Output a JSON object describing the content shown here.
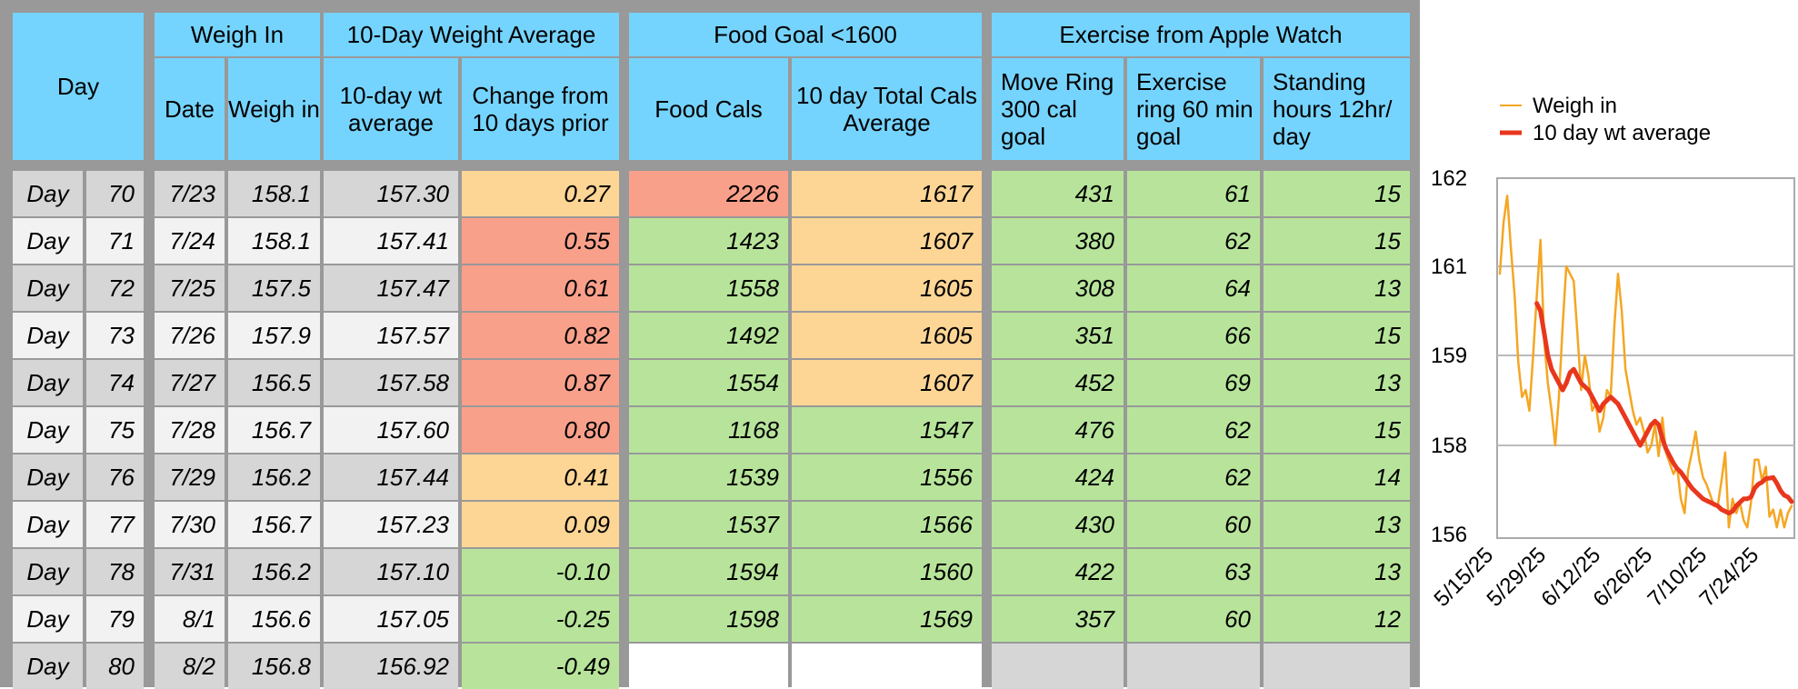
{
  "headers": {
    "day": "Day",
    "weigh_in_group": "Weigh In",
    "avg_group": "10-Day Weight Average",
    "food_group": "Food Goal <1600",
    "exercise_group": "Exercise from Apple Watch",
    "columns": [
      "Date",
      "Weigh in",
      "10-day wt average",
      "Change from 10 days prior",
      "Food Cals",
      "10 day Total Cals Average",
      "Move Ring 300 cal goal",
      "Exercise ring 60 min goal",
      "Standing hours 12hr/ day"
    ]
  },
  "rows": [
    {
      "label": "Day",
      "num": "70",
      "date": "7/23",
      "weigh": "158.1",
      "avg": "157.30",
      "change": "0.27",
      "food": "2226",
      "food_avg": "1617",
      "move": "431",
      "exercise": "61",
      "stand": "15"
    },
    {
      "label": "Day",
      "num": "71",
      "date": "7/24",
      "weigh": "158.1",
      "avg": "157.41",
      "change": "0.55",
      "food": "1423",
      "food_avg": "1607",
      "move": "380",
      "exercise": "62",
      "stand": "15"
    },
    {
      "label": "Day",
      "num": "72",
      "date": "7/25",
      "weigh": "157.5",
      "avg": "157.47",
      "change": "0.61",
      "food": "1558",
      "food_avg": "1605",
      "move": "308",
      "exercise": "64",
      "stand": "13"
    },
    {
      "label": "Day",
      "num": "73",
      "date": "7/26",
      "weigh": "157.9",
      "avg": "157.57",
      "change": "0.82",
      "food": "1492",
      "food_avg": "1605",
      "move": "351",
      "exercise": "66",
      "stand": "15"
    },
    {
      "label": "Day",
      "num": "74",
      "date": "7/27",
      "weigh": "156.5",
      "avg": "157.58",
      "change": "0.87",
      "food": "1554",
      "food_avg": "1607",
      "move": "452",
      "exercise": "69",
      "stand": "13"
    },
    {
      "label": "Day",
      "num": "75",
      "date": "7/28",
      "weigh": "156.7",
      "avg": "157.60",
      "change": "0.80",
      "food": "1168",
      "food_avg": "1547",
      "move": "476",
      "exercise": "62",
      "stand": "15"
    },
    {
      "label": "Day",
      "num": "76",
      "date": "7/29",
      "weigh": "156.2",
      "avg": "157.44",
      "change": "0.41",
      "food": "1539",
      "food_avg": "1556",
      "move": "424",
      "exercise": "62",
      "stand": "14"
    },
    {
      "label": "Day",
      "num": "77",
      "date": "7/30",
      "weigh": "156.7",
      "avg": "157.23",
      "change": "0.09",
      "food": "1537",
      "food_avg": "1566",
      "move": "430",
      "exercise": "60",
      "stand": "13"
    },
    {
      "label": "Day",
      "num": "78",
      "date": "7/31",
      "weigh": "156.2",
      "avg": "157.10",
      "change": "-0.10",
      "food": "1594",
      "food_avg": "1560",
      "move": "422",
      "exercise": "63",
      "stand": "13"
    },
    {
      "label": "Day",
      "num": "79",
      "date": "8/1",
      "weigh": "156.6",
      "avg": "157.05",
      "change": "-0.25",
      "food": "1598",
      "food_avg": "1569",
      "move": "357",
      "exercise": "60",
      "stand": "12"
    },
    {
      "label": "Day",
      "num": "80",
      "date": "8/2",
      "weigh": "156.8",
      "avg": "156.92",
      "change": "-0.49",
      "food": "",
      "food_avg": "",
      "move": "",
      "exercise": "",
      "stand": ""
    }
  ],
  "row_colors": [
    {
      "change": "orange",
      "food": "red",
      "food_avg": "orange",
      "watch": "green"
    },
    {
      "change": "red",
      "food": "green",
      "food_avg": "orange",
      "watch": "green"
    },
    {
      "change": "red",
      "food": "green",
      "food_avg": "orange",
      "watch": "green"
    },
    {
      "change": "red",
      "food": "green",
      "food_avg": "orange",
      "watch": "green"
    },
    {
      "change": "red",
      "food": "green",
      "food_avg": "orange",
      "watch": "green"
    },
    {
      "change": "red",
      "food": "green",
      "food_avg": "green",
      "watch": "green"
    },
    {
      "change": "orange",
      "food": "green",
      "food_avg": "green",
      "watch": "green"
    },
    {
      "change": "orange",
      "food": "green",
      "food_avg": "green",
      "watch": "green"
    },
    {
      "change": "green",
      "food": "green",
      "food_avg": "green",
      "watch": "green"
    },
    {
      "change": "green",
      "food": "green",
      "food_avg": "green",
      "watch": "green"
    },
    {
      "change": "green",
      "food": "white",
      "food_avg": "white",
      "watch": "gray"
    }
  ],
  "colors": {
    "header": "#75d4fe",
    "green": "#b7e49a",
    "orange": "#fdd595",
    "red": "#f9a08a",
    "gray": "#d6d6d6",
    "white": "#ffffff",
    "weigh_in_series": "#f5a623",
    "average_series": "#e8371d"
  },
  "chart_data": {
    "type": "line",
    "title": "",
    "x_tick_labels": [
      "5/15/25",
      "5/29/25",
      "6/12/25",
      "6/26/25",
      "7/10/25",
      "7/24/25"
    ],
    "y_tick_labels": [
      "162",
      "161",
      "159",
      "158",
      "156"
    ],
    "grid": true,
    "legend_position": "top",
    "series": [
      {
        "name": "Weigh in",
        "color": "#f5a623",
        "values": [
          160.9,
          161.5,
          161.8,
          161.2,
          160.6,
          159.7,
          159.2,
          159.3,
          159.0,
          159.8,
          160.6,
          161.3,
          160.0,
          159.4,
          159.0,
          158.5,
          159.2,
          160.2,
          161.0,
          160.9,
          160.8,
          160.1,
          159.3,
          159.8,
          159.5,
          159.0,
          159.1,
          158.7,
          158.9,
          159.3,
          159.2,
          160.2,
          160.9,
          160.4,
          159.6,
          159.3,
          159.0,
          158.8,
          158.9,
          158.7,
          158.3,
          158.5,
          158.8,
          158.2,
          158.9,
          158.3,
          158.0,
          157.7,
          157.9,
          157.0,
          156.6,
          157.8,
          158.3,
          158.7,
          158.1,
          157.6,
          157.4,
          157.1,
          156.8,
          156.8,
          157.5,
          158.3,
          156.2,
          157.0,
          156.6,
          156.9,
          156.4,
          156.2,
          156.9,
          158.1,
          158.1,
          157.5,
          157.9,
          156.5,
          156.7,
          156.2,
          156.7,
          156.2,
          156.6,
          156.8
        ]
      },
      {
        "name": "10 day wt average",
        "color": "#e8371d",
        "values": [
          160.5,
          160.4,
          160.1,
          159.8,
          159.6,
          159.5,
          159.4,
          159.3,
          159.4,
          159.55,
          159.6,
          159.5,
          159.4,
          159.35,
          159.3,
          159.2,
          159.1,
          159.0,
          159.1,
          159.15,
          159.2,
          159.15,
          159.1,
          159.0,
          158.9,
          158.8,
          158.7,
          158.6,
          158.5,
          158.6,
          158.7,
          158.8,
          158.85,
          158.8,
          158.6,
          158.4,
          158.2,
          158.0,
          157.85,
          157.75,
          157.6,
          157.45,
          157.3,
          157.2,
          157.1,
          157.0,
          156.95,
          156.9,
          156.85,
          156.8,
          156.7,
          156.65,
          156.6,
          156.65,
          156.8,
          156.9,
          157.0,
          157.0,
          157.05,
          157.3,
          157.41,
          157.47,
          157.57,
          157.58,
          157.6,
          157.44,
          157.23,
          157.1,
          157.05,
          156.92
        ]
      }
    ]
  }
}
